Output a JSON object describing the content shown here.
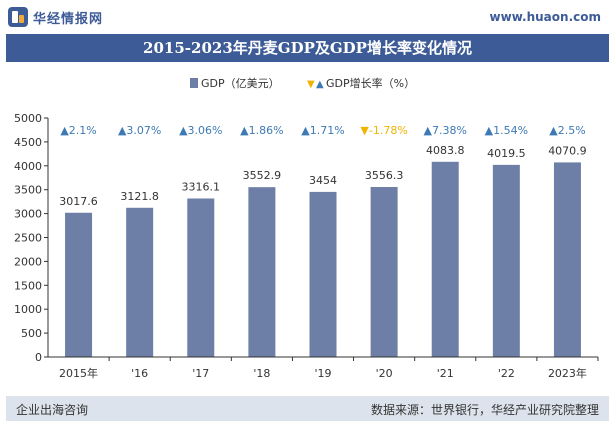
{
  "header": {
    "brand": "华经情报网",
    "url": "www.huaon.com"
  },
  "chart_data": {
    "type": "bar",
    "title": "2015-2023年丹麦GDP及GDP增长率变化情况",
    "categories": [
      "2015年",
      "'16",
      "'17",
      "'18",
      "'19",
      "'20",
      "'21",
      "'22",
      "2023年"
    ],
    "series": [
      {
        "name": "GDP（亿美元）",
        "values": [
          3017.6,
          3121.8,
          3316.1,
          3552.9,
          3454,
          3556.3,
          4083.8,
          4019.5,
          4070.9
        ],
        "color": "#6d7fa6"
      },
      {
        "name": "GDP增长率（%）",
        "values": [
          2.1,
          3.07,
          3.06,
          1.86,
          1.71,
          -1.78,
          7.38,
          1.54,
          2.5
        ]
      }
    ],
    "value_labels": [
      "3017.6",
      "3121.8",
      "3316.1",
      "3552.9",
      "3454",
      "3556.3",
      "4083.8",
      "4019.5",
      "4070.9"
    ],
    "growth_labels": [
      "2.1%",
      "3.07%",
      "3.06%",
      "1.86%",
      "1.71%",
      "-1.78%",
      "7.38%",
      "1.54%",
      "2.5%"
    ],
    "y_ticks": [
      "0",
      "500",
      "1000",
      "1500",
      "2000",
      "2500",
      "3000",
      "3500",
      "4000",
      "4500",
      "5000"
    ],
    "ylim": [
      0,
      5000
    ],
    "xlabel": "",
    "ylabel": "",
    "grid": false,
    "legend_position": "top-center",
    "colors": {
      "bar": "#6d7fa6",
      "growth_up": "#3d7ab5",
      "growth_down": "#f0b400",
      "title_bg": "#3d5b96"
    }
  },
  "footer": {
    "left": "企业出海咨询",
    "right": "数据来源：世界银行，华经产业研究院整理"
  }
}
